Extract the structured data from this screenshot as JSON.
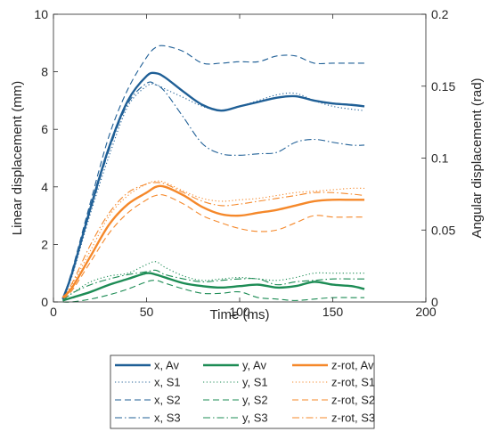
{
  "chart_data": {
    "type": "line",
    "xlabel": "Time (ms)",
    "ylabel_left": "Linear displacement (mm)",
    "ylabel_right": "Angular displacement (rad)",
    "xlim": [
      0,
      200
    ],
    "ylim_left": [
      0,
      10
    ],
    "ylim_right": [
      0,
      0.2
    ],
    "x_ticks": [
      "0",
      "50",
      "100",
      "150",
      "200"
    ],
    "y_ticks_left": [
      "0",
      "2",
      "4",
      "6",
      "8",
      "10"
    ],
    "y_ticks_right": [
      "0",
      "0.05",
      "0.1",
      "0.15",
      "0.2"
    ],
    "grid": false,
    "legend_position": "below",
    "x": [
      5,
      10,
      20,
      30,
      40,
      50,
      55,
      60,
      70,
      80,
      90,
      100,
      110,
      120,
      130,
      140,
      150,
      160,
      167
    ],
    "series": [
      {
        "name": "x, Av",
        "axis": "left",
        "color": "#1f5f96",
        "dash": "solid",
        "width": 2.4,
        "values": [
          0.1,
          1.0,
          3.3,
          5.4,
          7.0,
          7.85,
          7.95,
          7.8,
          7.3,
          6.85,
          6.65,
          6.8,
          6.95,
          7.1,
          7.15,
          7.0,
          6.9,
          6.85,
          6.8
        ]
      },
      {
        "name": "x, S1",
        "axis": "left",
        "color": "#1f5f96",
        "dash": "dot",
        "width": 1.1,
        "values": [
          0.1,
          0.9,
          3.1,
          5.1,
          6.8,
          7.5,
          7.55,
          7.4,
          7.1,
          6.8,
          6.65,
          6.8,
          7.0,
          7.2,
          7.25,
          7.0,
          6.8,
          6.7,
          6.65
        ]
      },
      {
        "name": "x, S2",
        "axis": "left",
        "color": "#1f5f96",
        "dash": "dash",
        "width": 1.1,
        "values": [
          0.1,
          1.1,
          3.5,
          5.8,
          7.4,
          8.5,
          8.85,
          8.9,
          8.7,
          8.3,
          8.3,
          8.35,
          8.35,
          8.55,
          8.55,
          8.3,
          8.3,
          8.3,
          8.3
        ]
      },
      {
        "name": "x, S3",
        "axis": "left",
        "color": "#1f5f96",
        "dash": "dashdot",
        "width": 1.1,
        "values": [
          0.1,
          1.0,
          3.2,
          5.3,
          6.9,
          7.6,
          7.55,
          7.3,
          6.4,
          5.5,
          5.15,
          5.1,
          5.15,
          5.2,
          5.55,
          5.65,
          5.55,
          5.45,
          5.45
        ]
      },
      {
        "name": "y, Av",
        "axis": "left",
        "color": "#1d8c55",
        "dash": "solid",
        "width": 2.4,
        "values": [
          0.05,
          0.15,
          0.35,
          0.6,
          0.8,
          1.0,
          0.95,
          0.85,
          0.65,
          0.55,
          0.5,
          0.55,
          0.6,
          0.5,
          0.55,
          0.7,
          0.6,
          0.55,
          0.45
        ]
      },
      {
        "name": "y, S1",
        "axis": "left",
        "color": "#1d8c55",
        "dash": "dot",
        "width": 1.1,
        "values": [
          0.05,
          0.3,
          0.7,
          0.9,
          1.0,
          1.3,
          1.4,
          1.2,
          0.9,
          0.75,
          0.8,
          0.85,
          0.8,
          0.75,
          0.85,
          1.0,
          1.0,
          1.0,
          1.0
        ]
      },
      {
        "name": "y, S2",
        "axis": "left",
        "color": "#1d8c55",
        "dash": "dash",
        "width": 1.1,
        "values": [
          0.0,
          0.0,
          0.1,
          0.25,
          0.45,
          0.7,
          0.75,
          0.65,
          0.45,
          0.3,
          0.3,
          0.35,
          0.15,
          0.1,
          0.05,
          0.1,
          0.15,
          0.15,
          0.15
        ]
      },
      {
        "name": "y, S3",
        "axis": "left",
        "color": "#1d8c55",
        "dash": "dashdot",
        "width": 1.1,
        "values": [
          0.05,
          0.3,
          0.6,
          0.8,
          0.95,
          1.05,
          1.1,
          0.95,
          0.8,
          0.7,
          0.75,
          0.8,
          0.8,
          0.6,
          0.7,
          0.75,
          0.8,
          0.8,
          0.8
        ]
      },
      {
        "name": "z-rot, Av",
        "axis": "right",
        "color": "#f5882a",
        "dash": "solid",
        "width": 2.4,
        "values": [
          0.003,
          0.01,
          0.032,
          0.054,
          0.068,
          0.076,
          0.08,
          0.08,
          0.074,
          0.066,
          0.061,
          0.06,
          0.062,
          0.064,
          0.067,
          0.07,
          0.071,
          0.071,
          0.071
        ]
      },
      {
        "name": "z-rot, S1",
        "axis": "right",
        "color": "#f5882a",
        "dash": "dot",
        "width": 1.1,
        "values": [
          0.003,
          0.012,
          0.036,
          0.06,
          0.074,
          0.082,
          0.084,
          0.083,
          0.077,
          0.072,
          0.07,
          0.071,
          0.072,
          0.074,
          0.076,
          0.077,
          0.078,
          0.079,
          0.079
        ]
      },
      {
        "name": "z-rot, S2",
        "axis": "right",
        "color": "#f5882a",
        "dash": "dash",
        "width": 1.1,
        "values": [
          0.002,
          0.008,
          0.028,
          0.048,
          0.062,
          0.071,
          0.074,
          0.074,
          0.068,
          0.06,
          0.055,
          0.051,
          0.049,
          0.05,
          0.055,
          0.06,
          0.059,
          0.059,
          0.059
        ]
      },
      {
        "name": "z-rot, S3",
        "axis": "right",
        "color": "#f5882a",
        "dash": "dashdot",
        "width": 1.1,
        "values": [
          0.003,
          0.013,
          0.04,
          0.062,
          0.076,
          0.082,
          0.083,
          0.082,
          0.076,
          0.07,
          0.067,
          0.068,
          0.07,
          0.072,
          0.074,
          0.076,
          0.076,
          0.075,
          0.074
        ]
      }
    ]
  }
}
